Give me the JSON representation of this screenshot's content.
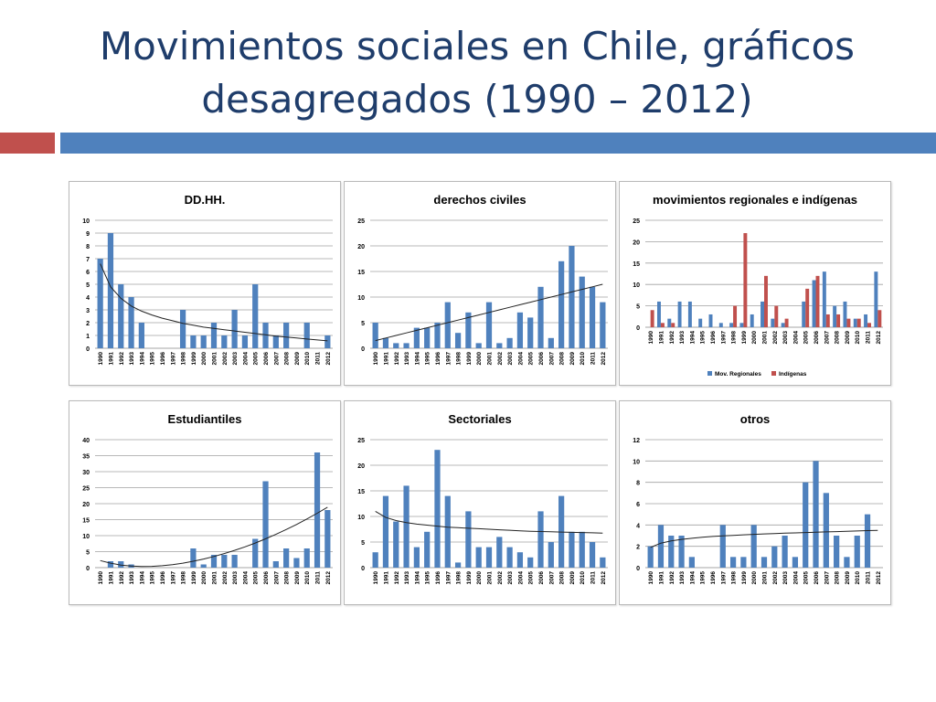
{
  "slide": {
    "title_line1": "Movimientos sociales en Chile, gráficos",
    "title_line2": "desagregados (1990 – 2012)",
    "colors": {
      "title": "#1f3d6b",
      "accent_red": "#c0504d",
      "accent_blue": "#4f81bd",
      "bar": "#4f81bd",
      "bar2": "#c0504d"
    }
  },
  "chart_data": [
    {
      "type": "bar",
      "title": "DD.HH.",
      "categories": [
        "1990",
        "1991",
        "1992",
        "1993",
        "1994",
        "1995",
        "1996",
        "1997",
        "1998",
        "1999",
        "2000",
        "2001",
        "2002",
        "2003",
        "2004",
        "2005",
        "2006",
        "2007",
        "2008",
        "2009",
        "2010",
        "2011",
        "2012"
      ],
      "series": [
        {
          "values": [
            7,
            9,
            5,
            4,
            2,
            0,
            0,
            0,
            3,
            1,
            1,
            2,
            1,
            3,
            1,
            5,
            2,
            1,
            2,
            0,
            2,
            0,
            1
          ]
        }
      ],
      "ylim": [
        0,
        10
      ],
      "yticks": [
        0,
        1,
        2,
        3,
        4,
        5,
        6,
        7,
        8,
        9,
        10
      ],
      "trend": [
        6.6,
        4.8,
        3.9,
        3.3,
        2.9,
        2.6,
        2.35,
        2.15,
        1.95,
        1.8,
        1.65,
        1.55,
        1.45,
        1.35,
        1.25,
        1.15,
        1.05,
        0.95,
        0.88,
        0.8,
        0.72,
        0.65,
        0.58
      ],
      "grid": true
    },
    {
      "type": "bar",
      "title": "derechos civiles",
      "categories": [
        "1990",
        "1991",
        "1992",
        "1993",
        "1994",
        "1995",
        "1996",
        "1997",
        "1998",
        "1999",
        "2000",
        "2001",
        "2002",
        "2003",
        "2004",
        "2005",
        "2006",
        "2007",
        "2008",
        "2009",
        "2010",
        "2011",
        "2012"
      ],
      "series": [
        {
          "values": [
            5,
            2,
            1,
            1,
            4,
            4,
            5,
            9,
            3,
            7,
            1,
            9,
            1,
            2,
            7,
            6,
            12,
            2,
            17,
            20,
            14,
            12,
            9
          ]
        }
      ],
      "ylim": [
        0,
        25
      ],
      "yticks": [
        0,
        5,
        10,
        15,
        20,
        25
      ],
      "trend": [
        1.5,
        2.0,
        2.5,
        3.0,
        3.5,
        4.0,
        4.5,
        5.0,
        5.5,
        6.0,
        6.5,
        7.0,
        7.5,
        8.0,
        8.5,
        9.0,
        9.5,
        10.0,
        10.5,
        11.0,
        11.5,
        12.0,
        12.5
      ],
      "grid": true
    },
    {
      "type": "bar",
      "title": "movimientos regionales e indígenas",
      "categories": [
        "1990",
        "1991",
        "1992",
        "1993",
        "1994",
        "1995",
        "1996",
        "1997",
        "1998",
        "1999",
        "2000",
        "2001",
        "2002",
        "2003",
        "2004",
        "2005",
        "2006",
        "2007",
        "2008",
        "2009",
        "2010",
        "2011",
        "2012"
      ],
      "series": [
        {
          "name": "Mov. Regionales",
          "values": [
            0,
            6,
            2,
            6,
            6,
            2,
            3,
            1,
            1,
            1,
            3,
            6,
            2,
            1,
            0,
            6,
            11,
            13,
            5,
            6,
            2,
            3,
            13
          ]
        },
        {
          "name": "Indígenas",
          "values": [
            4,
            1,
            1,
            0,
            0,
            0,
            0,
            0,
            5,
            22,
            0,
            12,
            5,
            2,
            0,
            9,
            12,
            3,
            3,
            2,
            2,
            1,
            4
          ]
        }
      ],
      "ylim": [
        0,
        25
      ],
      "yticks": [
        0,
        5,
        10,
        15,
        20,
        25
      ],
      "legend": "bottom",
      "grid": true
    },
    {
      "type": "bar",
      "title": "Estudiantiles",
      "categories": [
        "1990",
        "1991",
        "1992",
        "1993",
        "1994",
        "1995",
        "1996",
        "1997",
        "1998",
        "1999",
        "2000",
        "2001",
        "2002",
        "2003",
        "2004",
        "2005",
        "2006",
        "2007",
        "2008",
        "2009",
        "2010",
        "2011",
        "2012"
      ],
      "series": [
        {
          "values": [
            0,
            2,
            2,
            1,
            0,
            0,
            0,
            0,
            0,
            6,
            1,
            4,
            4,
            4,
            0,
            9,
            27,
            2,
            6,
            3,
            6,
            36,
            18
          ]
        }
      ],
      "ylim": [
        0,
        40
      ],
      "yticks": [
        0,
        5,
        10,
        15,
        20,
        25,
        30,
        35,
        40
      ],
      "trend": [
        2.2,
        1.4,
        0.8,
        0.5,
        0.35,
        0.4,
        0.6,
        0.9,
        1.4,
        2.0,
        2.7,
        3.5,
        4.4,
        5.4,
        6.5,
        7.7,
        9.0,
        10.4,
        11.9,
        13.5,
        15.2,
        17.0,
        18.9
      ],
      "grid": true
    },
    {
      "type": "bar",
      "title": "Sectoriales",
      "categories": [
        "1990",
        "1991",
        "1992",
        "1993",
        "1994",
        "1995",
        "1996",
        "1997",
        "1998",
        "1999",
        "2000",
        "2001",
        "2002",
        "2003",
        "2004",
        "2005",
        "2006",
        "2007",
        "2008",
        "2009",
        "2010",
        "2011",
        "2012"
      ],
      "series": [
        {
          "values": [
            3,
            14,
            9,
            16,
            4,
            7,
            23,
            14,
            1,
            11,
            4,
            4,
            6,
            4,
            3,
            2,
            11,
            5,
            14,
            7,
            7,
            5,
            2
          ]
        }
      ],
      "ylim": [
        0,
        25
      ],
      "yticks": [
        0,
        5,
        10,
        15,
        20,
        25
      ],
      "trend": [
        11,
        9.8,
        9.2,
        8.8,
        8.5,
        8.3,
        8.1,
        7.9,
        7.8,
        7.7,
        7.6,
        7.5,
        7.4,
        7.3,
        7.2,
        7.1,
        7.05,
        7.0,
        6.95,
        6.9,
        6.85,
        6.8,
        6.75
      ],
      "grid": true
    },
    {
      "type": "bar",
      "title": "otros",
      "categories": [
        "1990",
        "1991",
        "1992",
        "1993",
        "1994",
        "1995",
        "1996",
        "1997",
        "1998",
        "1999",
        "2000",
        "2001",
        "2002",
        "2003",
        "2004",
        "2005",
        "2006",
        "2007",
        "2008",
        "2009",
        "2010",
        "2011",
        "2012"
      ],
      "series": [
        {
          "values": [
            2,
            4,
            3,
            3,
            1,
            0,
            0,
            4,
            1,
            1,
            4,
            1,
            2,
            3,
            1,
            8,
            10,
            7,
            3,
            1,
            3,
            5,
            0
          ]
        }
      ],
      "ylim": [
        0,
        12
      ],
      "yticks": [
        0,
        2,
        4,
        6,
        8,
        10,
        12
      ],
      "trend": [
        1.9,
        2.3,
        2.5,
        2.65,
        2.75,
        2.85,
        2.92,
        2.98,
        3.03,
        3.08,
        3.12,
        3.16,
        3.2,
        3.23,
        3.26,
        3.29,
        3.32,
        3.35,
        3.38,
        3.41,
        3.44,
        3.47,
        3.5
      ],
      "grid": true
    }
  ]
}
